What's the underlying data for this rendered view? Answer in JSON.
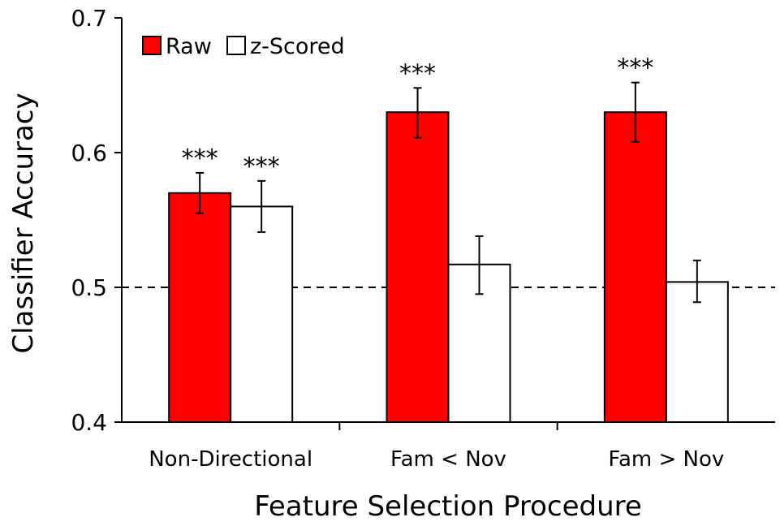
{
  "chart_data": {
    "type": "bar",
    "title": "",
    "xlabel": "Feature Selection Procedure",
    "ylabel": "Classifier Accuracy",
    "ylim": [
      0.4,
      0.7
    ],
    "yticks": [
      "0.4",
      "0.5",
      "0.6",
      "0.7"
    ],
    "ytick_values": [
      0.4,
      0.5,
      0.6,
      0.7
    ],
    "categories": [
      "Non-Directional",
      "Fam < Nov",
      "Fam > Nov"
    ],
    "series": [
      {
        "name": "Raw",
        "color": "#ff0000",
        "values": [
          0.57,
          0.63,
          0.63
        ],
        "error_low": [
          0.555,
          0.611,
          0.608
        ],
        "error_high": [
          0.585,
          0.648,
          0.652
        ],
        "significance": [
          "***",
          "***",
          "***"
        ]
      },
      {
        "name": "z-Scored",
        "color": "#ffffff",
        "values": [
          0.56,
          0.517,
          0.504
        ],
        "error_low": [
          0.541,
          0.495,
          0.489
        ],
        "error_high": [
          0.579,
          0.538,
          0.52
        ],
        "significance": [
          "***",
          "",
          ""
        ]
      }
    ],
    "reference_line": 0.5,
    "legend_position": "top-left",
    "grid": false
  }
}
